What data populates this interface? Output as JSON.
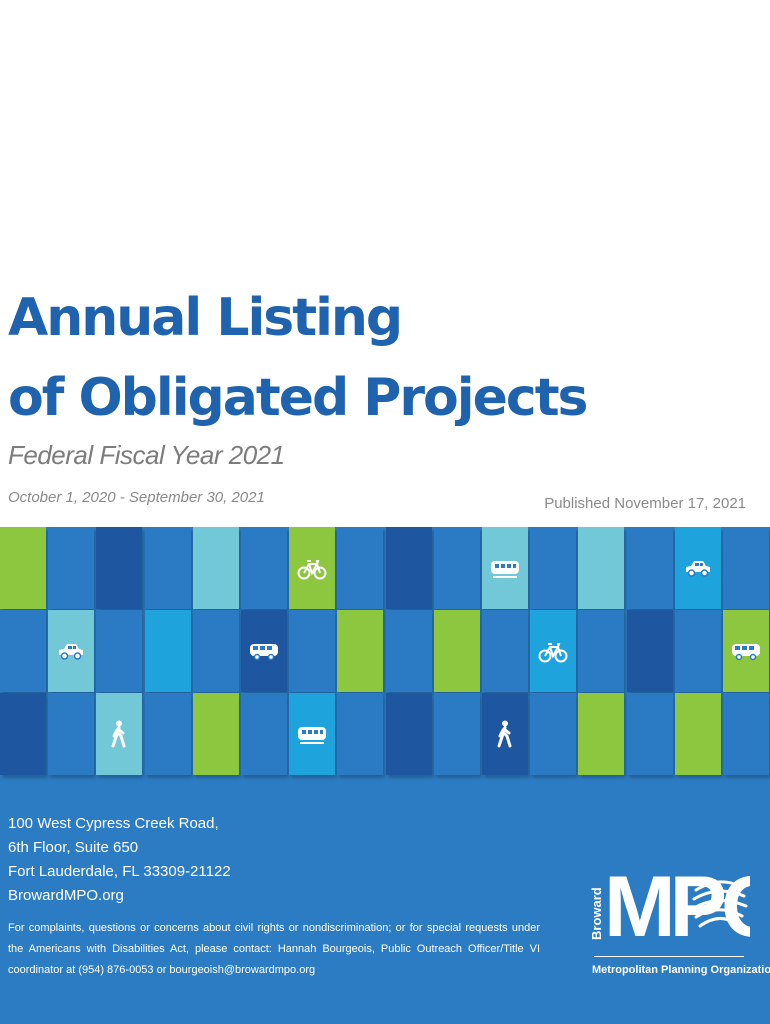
{
  "cover": {
    "title_lines": [
      "Annual Listing",
      "of Obligated Projects"
    ],
    "fiscal_year": "Federal Fiscal Year 2021",
    "date_range": "October 1, 2020 - September 30, 2021",
    "published": "Published November 17, 2021"
  },
  "colors": {
    "title": "#1f62ad",
    "band": "#2c7cc3",
    "tile_green": "#8dc63f",
    "tile_cyan": "#73c8d8",
    "tile_sky": "#1fa3dc",
    "tile_navy": "#1e56a0",
    "tile_blue": "#2b7bc4"
  },
  "mosaic": {
    "icons": [
      "bicycle-icon",
      "train-icon",
      "car-icon",
      "bus-icon",
      "pedestrian-icon"
    ]
  },
  "footer": {
    "address_lines": [
      "100 West Cypress Creek Road,",
      "6th Floor, Suite 650",
      "Fort Lauderdale, FL 33309-21122",
      "BrowardMPO.org"
    ],
    "notice": "For complaints, questions or concerns about civil rights or nondiscrimination; or for special requests under the Americans with Disabilities Act, please contact: Hannah Bourgeois, Public Outreach Officer/Title VI coordinator at (954) 876-0053 or bourgeoish@browardmpo.org"
  },
  "logo": {
    "side_text": "Broward",
    "main_text": "MPO",
    "subtitle": "Metropolitan Planning Organization"
  }
}
